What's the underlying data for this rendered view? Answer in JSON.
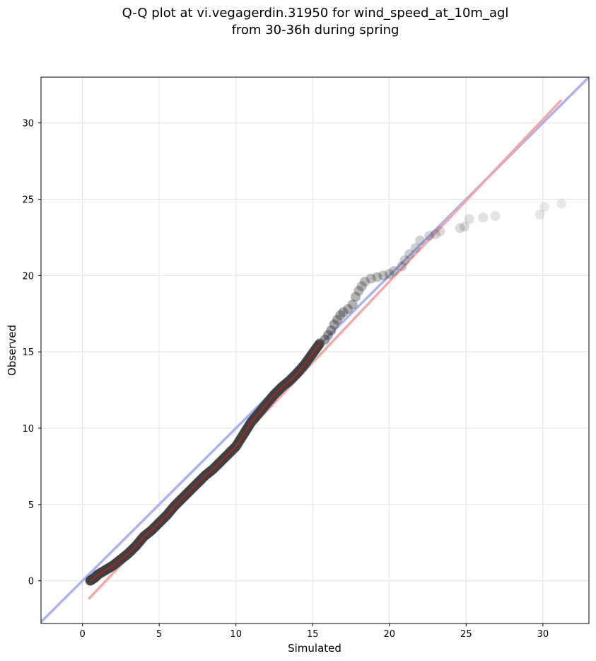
{
  "chart_data": {
    "type": "scatter",
    "title_lines": [
      "Q-Q plot at vi.vegagerdin.31950 for wind_speed_at_10m_agl",
      "from 30-36h during spring"
    ],
    "xlabel": "Simulated",
    "ylabel": "Observed",
    "xlim": [
      -2.7,
      33.0
    ],
    "ylim": [
      -2.8,
      33.0
    ],
    "xticks": [
      0,
      5,
      10,
      15,
      20,
      25,
      30
    ],
    "yticks": [
      0,
      5,
      10,
      15,
      20,
      25,
      30
    ],
    "xtick_labels": [
      "0",
      "5",
      "10",
      "15",
      "20",
      "25",
      "30"
    ],
    "ytick_labels": [
      "0",
      "5",
      "10",
      "15",
      "20",
      "25",
      "30"
    ],
    "grid": true,
    "colors": {
      "points": "#404040",
      "identity_line": "#a6aef2",
      "fit_line": "#f4a3a3",
      "dense_fit": "#c02020"
    },
    "identity_line": {
      "x": [
        -2.7,
        33.0
      ],
      "y": [
        -2.7,
        33.0
      ]
    },
    "fit_line": {
      "x": [
        0.4,
        31.2
      ],
      "y": [
        -1.2,
        31.5
      ]
    },
    "quantile_curve": {
      "x": [
        0.5,
        0.8,
        1.0,
        1.5,
        2.0,
        2.5,
        3.0,
        3.5,
        4.0,
        4.5,
        5.0,
        5.5,
        6.0,
        6.5,
        7.0,
        7.5,
        8.0,
        8.5,
        9.0,
        9.5,
        10.0,
        10.5,
        11.0,
        11.5,
        12.0,
        12.5,
        13.0,
        13.5,
        14.0,
        14.5,
        15.0,
        15.5
      ],
      "y": [
        0.0,
        0.2,
        0.4,
        0.7,
        1.0,
        1.4,
        1.8,
        2.3,
        2.9,
        3.3,
        3.8,
        4.3,
        4.9,
        5.4,
        5.9,
        6.4,
        6.9,
        7.3,
        7.8,
        8.3,
        8.8,
        9.6,
        10.4,
        11.0,
        11.6,
        12.2,
        12.7,
        13.1,
        13.6,
        14.2,
        14.9,
        15.6
      ]
    },
    "tail_points": {
      "x": [
        15.8,
        16.0,
        16.2,
        16.4,
        16.6,
        16.8,
        17.0,
        17.3,
        17.6,
        17.8,
        18.0,
        18.2,
        18.4,
        18.8,
        19.2,
        19.6,
        20.0,
        20.3,
        20.8,
        21.0,
        21.3,
        21.7,
        22.0,
        22.6,
        23.0,
        23.3,
        24.6,
        24.9,
        25.2,
        26.1,
        26.9,
        29.8,
        30.1,
        31.2
      ],
      "y": [
        15.8,
        16.1,
        16.4,
        16.8,
        17.1,
        17.4,
        17.6,
        17.8,
        18.1,
        18.6,
        19.0,
        19.3,
        19.6,
        19.8,
        19.9,
        20.0,
        20.1,
        20.3,
        20.6,
        21.0,
        21.4,
        21.8,
        22.3,
        22.6,
        22.7,
        22.9,
        23.1,
        23.2,
        23.7,
        23.8,
        23.9,
        24.0,
        24.5,
        24.7
      ]
    }
  }
}
